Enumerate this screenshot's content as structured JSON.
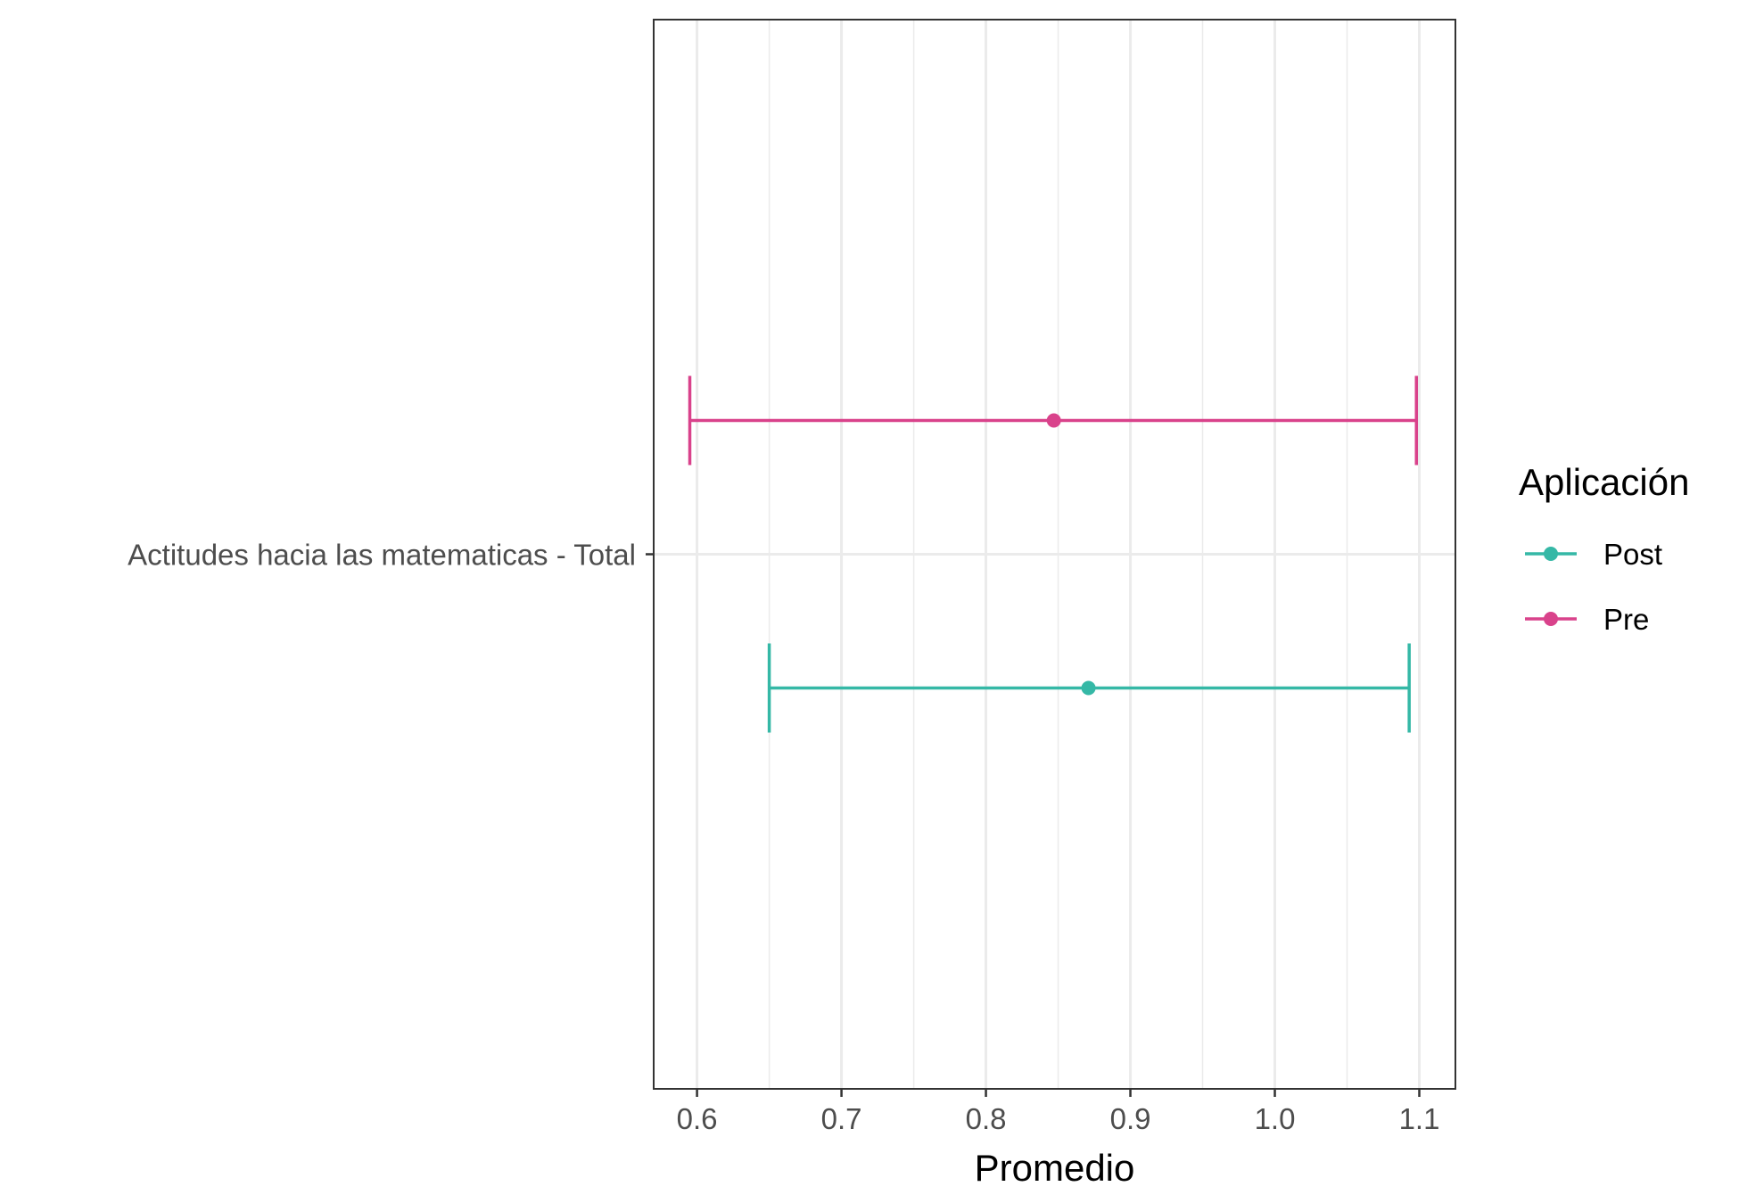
{
  "chart_data": {
    "type": "errorbar",
    "title": "",
    "xlabel": "Promedio",
    "ylabel": "",
    "xlim": [
      0.57,
      1.125
    ],
    "x_ticks": [
      "0.6",
      "0.7",
      "0.8",
      "0.9",
      "1.0",
      "1.1"
    ],
    "x_tick_values": [
      0.6,
      0.7,
      0.8,
      0.9,
      1.0,
      1.1
    ],
    "categories": [
      "Actitudes hacia las matematicas - Total"
    ],
    "grid": true,
    "legend": {
      "title": "Aplicación",
      "position": "right"
    },
    "series": [
      {
        "name": "Post",
        "color": "#35b8a6",
        "mean": 0.871,
        "lower": 0.65,
        "upper": 1.093
      },
      {
        "name": "Pre",
        "color": "#d9428b",
        "mean": 0.847,
        "lower": 0.595,
        "upper": 1.098
      }
    ]
  }
}
